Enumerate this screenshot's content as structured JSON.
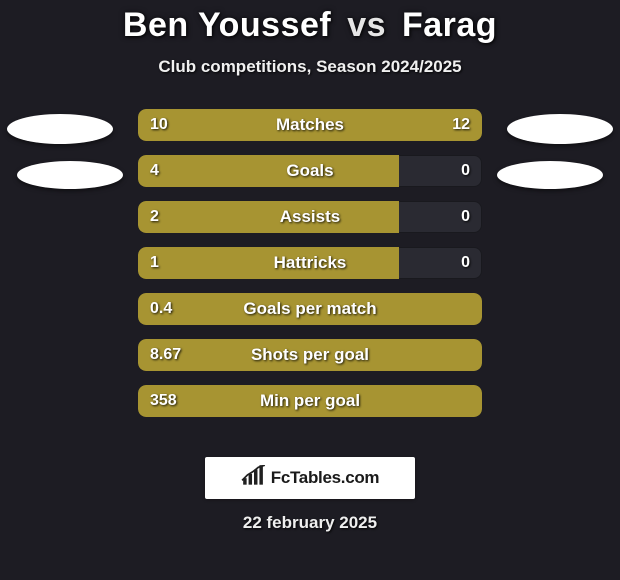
{
  "title": {
    "player1": "Ben Youssef",
    "vs": "vs",
    "player2": "Farag"
  },
  "subtitle": "Club competitions, Season 2024/2025",
  "background_color": "#1d1c23",
  "bar_track_color": "#2a2a32",
  "bar_fill_color": "#a79432",
  "text_color": "#ffffff",
  "bars": [
    {
      "label": "Matches",
      "left_val": "10",
      "right_val": "12",
      "left_pct": 45.5,
      "right_pct": 54.5,
      "mode": "split"
    },
    {
      "label": "Goals",
      "left_val": "4",
      "right_val": "0",
      "left_pct": 76,
      "right_pct": 0,
      "mode": "split"
    },
    {
      "label": "Assists",
      "left_val": "2",
      "right_val": "0",
      "left_pct": 76,
      "right_pct": 0,
      "mode": "split"
    },
    {
      "label": "Hattricks",
      "left_val": "1",
      "right_val": "0",
      "left_pct": 76,
      "right_pct": 0,
      "mode": "split"
    },
    {
      "label": "Goals per match",
      "left_val": "0.4",
      "right_val": "",
      "left_pct": 100,
      "right_pct": 0,
      "mode": "full"
    },
    {
      "label": "Shots per goal",
      "left_val": "8.67",
      "right_val": "",
      "left_pct": 100,
      "right_pct": 0,
      "mode": "full"
    },
    {
      "label": "Min per goal",
      "left_val": "358",
      "right_val": "",
      "left_pct": 100,
      "right_pct": 0,
      "mode": "full"
    }
  ],
  "watermark": "FcTables.com",
  "date": "22 february 2025"
}
